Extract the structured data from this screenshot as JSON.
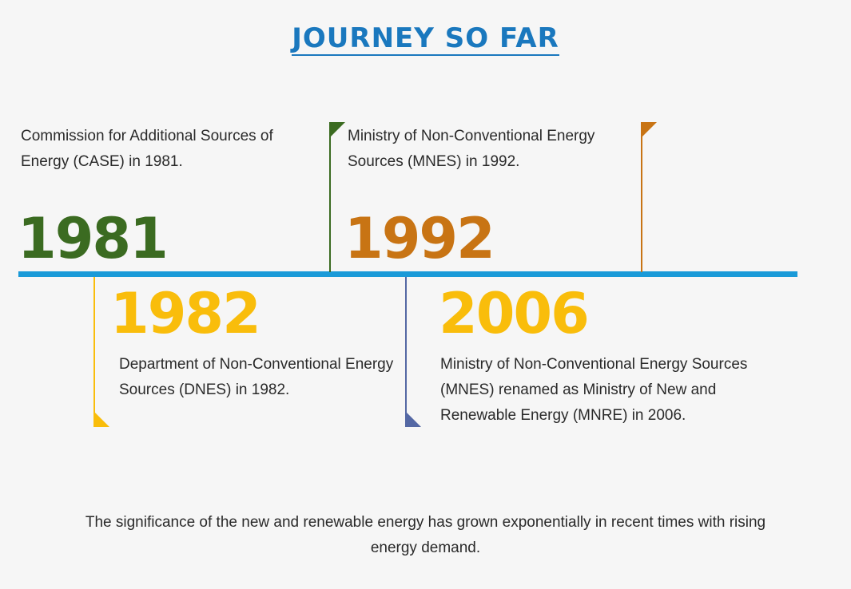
{
  "title": "JOURNEY SO FAR",
  "colors": {
    "title": "#1a78be",
    "timeline": "#1a9ad8",
    "green": "#3b6b21",
    "orange": "#c87414",
    "yellow": "#f9bd0b",
    "slate": "#5468a4"
  },
  "events": {
    "e1981": {
      "year": "1981",
      "description": "Commission for Additional Sources of Energy (CASE) in 1981."
    },
    "e1982": {
      "year": "1982",
      "description": "Department of Non-Conventional Energy Sources (DNES) in 1982."
    },
    "e1992": {
      "year": "1992",
      "description": "Ministry of Non-Conventional Energy Sources (MNES) in 1992."
    },
    "e2006": {
      "year": "2006",
      "description": "Ministry of Non-Conventional Energy Sources (MNES) renamed as Ministry of New and Renewable Energy (MNRE) in 2006."
    }
  },
  "footer": "The significance of the new and renewable energy has grown exponentially in recent times with rising energy demand."
}
